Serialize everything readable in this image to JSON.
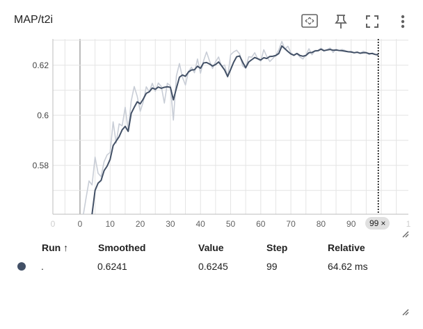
{
  "card": {
    "title": "MAP/t2i",
    "toolbar": [
      {
        "name": "fit-domain-icon"
      },
      {
        "name": "pin-icon"
      },
      {
        "name": "fullscreen-icon"
      },
      {
        "name": "more-vert-icon"
      }
    ]
  },
  "step_chip": {
    "label": "99",
    "close": "×"
  },
  "table": {
    "headers": {
      "run": "Run ↑",
      "smoothed": "Smoothed",
      "value": "Value",
      "step": "Step",
      "relative": "Relative"
    },
    "row": {
      "run": ".",
      "smoothed": "0.6241",
      "value": "0.6245",
      "step": "99",
      "relative": "64.62 ms",
      "color": "#425066"
    }
  },
  "chart_data": {
    "type": "line",
    "title": "MAP/t2i",
    "xlabel": "",
    "ylabel": "",
    "xlim": [
      -9,
      109
    ],
    "ylim": [
      0.5605,
      0.6305
    ],
    "x_ticks": [
      0,
      10,
      20,
      30,
      40,
      50,
      60,
      70,
      80,
      90
    ],
    "x_ticks_faint": [
      -9,
      109
    ],
    "x_tick_labels_faint": [
      "0",
      "1"
    ],
    "y_ticks": [
      0.58,
      0.6,
      0.62
    ],
    "y_tick_labels": [
      "0.58",
      "0.6",
      "0.62"
    ],
    "grid": true,
    "step_marker": 99,
    "series": [
      {
        "role": "raw",
        "color": "#c8cdd6",
        "x": [
          0,
          1,
          2,
          3,
          4,
          5,
          6,
          7,
          8,
          9,
          10,
          11,
          12,
          13,
          14,
          15,
          16,
          17,
          18,
          19,
          20,
          21,
          22,
          23,
          24,
          25,
          26,
          27,
          28,
          29,
          30,
          31,
          32,
          33,
          34,
          35,
          36,
          37,
          38,
          39,
          40,
          41,
          42,
          43,
          44,
          45,
          46,
          47,
          48,
          49,
          50,
          51,
          52,
          53,
          54,
          55,
          56,
          57,
          58,
          59,
          60,
          61,
          62,
          63,
          64,
          65,
          66,
          67,
          68,
          69,
          70,
          71,
          72,
          73,
          74,
          75,
          76,
          77,
          78,
          79,
          80,
          81,
          82,
          83,
          84,
          85,
          86,
          87,
          88,
          89,
          90,
          91,
          92,
          93,
          94,
          95,
          96,
          97,
          98,
          99
        ],
        "values": [
          0.5595,
          0.5595,
          0.5669,
          0.5738,
          0.5722,
          0.5833,
          0.5769,
          0.5755,
          0.5815,
          0.5842,
          0.5852,
          0.5974,
          0.5889,
          0.5966,
          0.5958,
          0.6032,
          0.594,
          0.6057,
          0.6115,
          0.6076,
          0.6016,
          0.6054,
          0.6114,
          0.6094,
          0.6128,
          0.6096,
          0.6129,
          0.6115,
          0.6049,
          0.6128,
          0.6118,
          0.5981,
          0.6157,
          0.6207,
          0.6152,
          0.6121,
          0.6175,
          0.6192,
          0.617,
          0.6225,
          0.6168,
          0.6217,
          0.6253,
          0.6217,
          0.6187,
          0.6214,
          0.6233,
          0.6195,
          0.6201,
          0.6152,
          0.6242,
          0.6253,
          0.626,
          0.6245,
          0.6197,
          0.6188,
          0.6234,
          0.6232,
          0.625,
          0.6225,
          0.6216,
          0.6262,
          0.6235,
          0.6215,
          0.6227,
          0.624,
          0.6262,
          0.6295,
          0.6264,
          0.6276,
          0.625,
          0.6238,
          0.6246,
          0.6233,
          0.6225,
          0.6241,
          0.6266,
          0.6242,
          0.6259,
          0.6259,
          0.6268,
          0.6259,
          0.6261,
          0.6269,
          0.6251,
          0.6264,
          0.6258,
          0.6263,
          0.6259,
          0.6253,
          0.6256,
          0.6249,
          0.6253,
          0.6248,
          0.6256,
          0.6251,
          0.6243,
          0.6249,
          0.6243,
          0.6245
        ]
      },
      {
        "role": "smoothed",
        "color": "#425066",
        "x": [
          4,
          5,
          6,
          7,
          8,
          9,
          10,
          11,
          12,
          13,
          14,
          15,
          16,
          17,
          18,
          19,
          20,
          21,
          22,
          23,
          24,
          25,
          26,
          27,
          28,
          29,
          30,
          31,
          32,
          33,
          34,
          35,
          36,
          37,
          38,
          39,
          40,
          41,
          42,
          43,
          44,
          45,
          46,
          47,
          48,
          49,
          50,
          51,
          52,
          53,
          54,
          55,
          56,
          57,
          58,
          59,
          60,
          61,
          62,
          63,
          64,
          65,
          66,
          67,
          68,
          69,
          70,
          71,
          72,
          73,
          74,
          75,
          76,
          77,
          78,
          79,
          80,
          81,
          82,
          83,
          84,
          85,
          86,
          87,
          88,
          89,
          90,
          91,
          92,
          93,
          94,
          95,
          96,
          97,
          98,
          99
        ],
        "values": [
          0.5605,
          0.57,
          0.5729,
          0.574,
          0.5779,
          0.5797,
          0.5824,
          0.5879,
          0.5897,
          0.5915,
          0.5942,
          0.5956,
          0.5936,
          0.6008,
          0.6032,
          0.6054,
          0.6046,
          0.6065,
          0.6088,
          0.6094,
          0.6109,
          0.6104,
          0.6113,
          0.6108,
          0.6112,
          0.6114,
          0.6112,
          0.6062,
          0.6108,
          0.6152,
          0.6161,
          0.6156,
          0.6173,
          0.6181,
          0.6182,
          0.6196,
          0.6188,
          0.6209,
          0.6211,
          0.6205,
          0.6197,
          0.6203,
          0.6213,
          0.6198,
          0.6181,
          0.6155,
          0.6183,
          0.6212,
          0.6234,
          0.6237,
          0.6212,
          0.619,
          0.6213,
          0.6222,
          0.6231,
          0.6226,
          0.6221,
          0.623,
          0.6227,
          0.6235,
          0.6236,
          0.6239,
          0.6247,
          0.6277,
          0.6266,
          0.6255,
          0.6245,
          0.624,
          0.6247,
          0.6239,
          0.6236,
          0.6239,
          0.625,
          0.6251,
          0.6257,
          0.6258,
          0.6264,
          0.6258,
          0.6261,
          0.6263,
          0.626,
          0.6261,
          0.6259,
          0.6258,
          0.6256,
          0.6254,
          0.6253,
          0.625,
          0.6252,
          0.6248,
          0.625,
          0.625,
          0.6246,
          0.6247,
          0.6243,
          0.6241
        ]
      }
    ]
  }
}
